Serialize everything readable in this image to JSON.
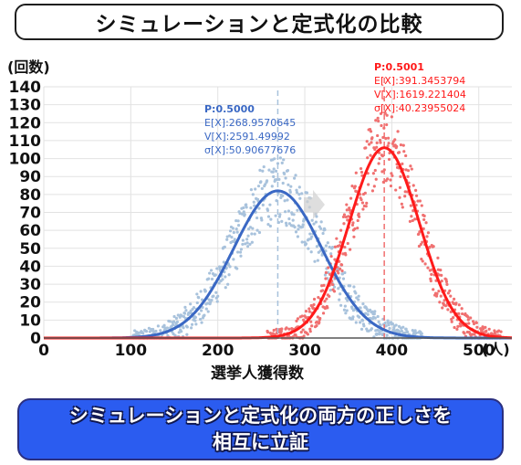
{
  "title": "シミュレーションと定式化の比較",
  "banner": {
    "line1": "シミュレーションと定式化の両方の正しさを",
    "line2": "相互に立証"
  },
  "chart_data": {
    "type": "scatter",
    "ylabel": "(回数)",
    "xlabel": "選挙人獲得数",
    "xunit": "(人)",
    "xlim": [
      0,
      538
    ],
    "ylim": [
      0,
      140
    ],
    "xticks": [
      0,
      100,
      200,
      300,
      400,
      500
    ],
    "yticks": [
      0,
      10,
      20,
      30,
      40,
      50,
      60,
      70,
      80,
      90,
      100,
      110,
      120,
      130,
      140
    ],
    "grid": true,
    "series": [
      {
        "color": "#3a68c4",
        "point_color": "#a8c2dc",
        "mean": 268.9570645,
        "sd": 50.90677676,
        "peak": 82,
        "annotation": [
          "P:0.5000",
          "E[X]:268.9570645",
          "V[X]:2591.49992",
          "σ[X]:50.90677676"
        ]
      },
      {
        "color": "#ff1a1a",
        "point_color": "#f07070",
        "mean": 391.3453794,
        "sd": 40.23955024,
        "peak": 106,
        "annotation": [
          "P:0.5001",
          "E[X]:391.3453794",
          "V[X]:1619.221404",
          "σ[X]:40.23955024"
        ]
      }
    ]
  }
}
